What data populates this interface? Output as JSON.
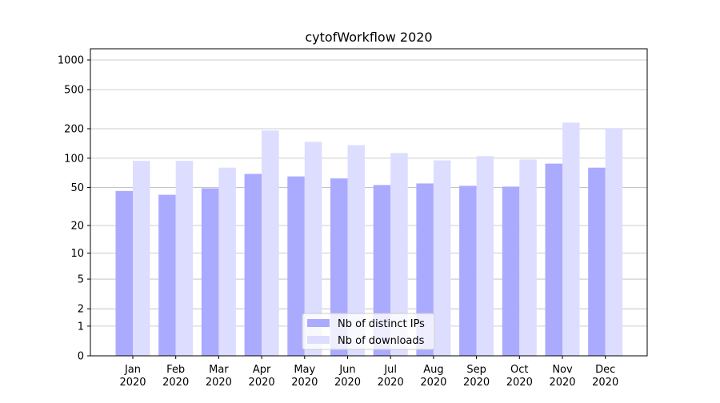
{
  "chart_data": {
    "type": "bar",
    "title": "cytofWorkflow 2020",
    "categories": [
      "Jan 2020",
      "Feb 2020",
      "Mar 2020",
      "Apr 2020",
      "May 2020",
      "Jun 2020",
      "Jul 2020",
      "Aug 2020",
      "Sep 2020",
      "Oct 2020",
      "Nov 2020",
      "Dec 2020"
    ],
    "series": [
      {
        "name": "Nb of distinct IPs",
        "color": "#aaaaff",
        "values": [
          46,
          42,
          49,
          69,
          65,
          62,
          53,
          55,
          52,
          51,
          88,
          80
        ]
      },
      {
        "name": "Nb of downloads",
        "color": "#ddddff",
        "values": [
          94,
          94,
          80,
          192,
          147,
          136,
          113,
          95,
          105,
          97,
          231,
          203
        ]
      }
    ],
    "yscale": "log1p",
    "ylim": [
      0,
      1300
    ],
    "yticks": [
      0,
      1,
      2,
      5,
      10,
      20,
      50,
      100,
      200,
      500,
      1000
    ],
    "grid": true,
    "legend": "lower center"
  }
}
